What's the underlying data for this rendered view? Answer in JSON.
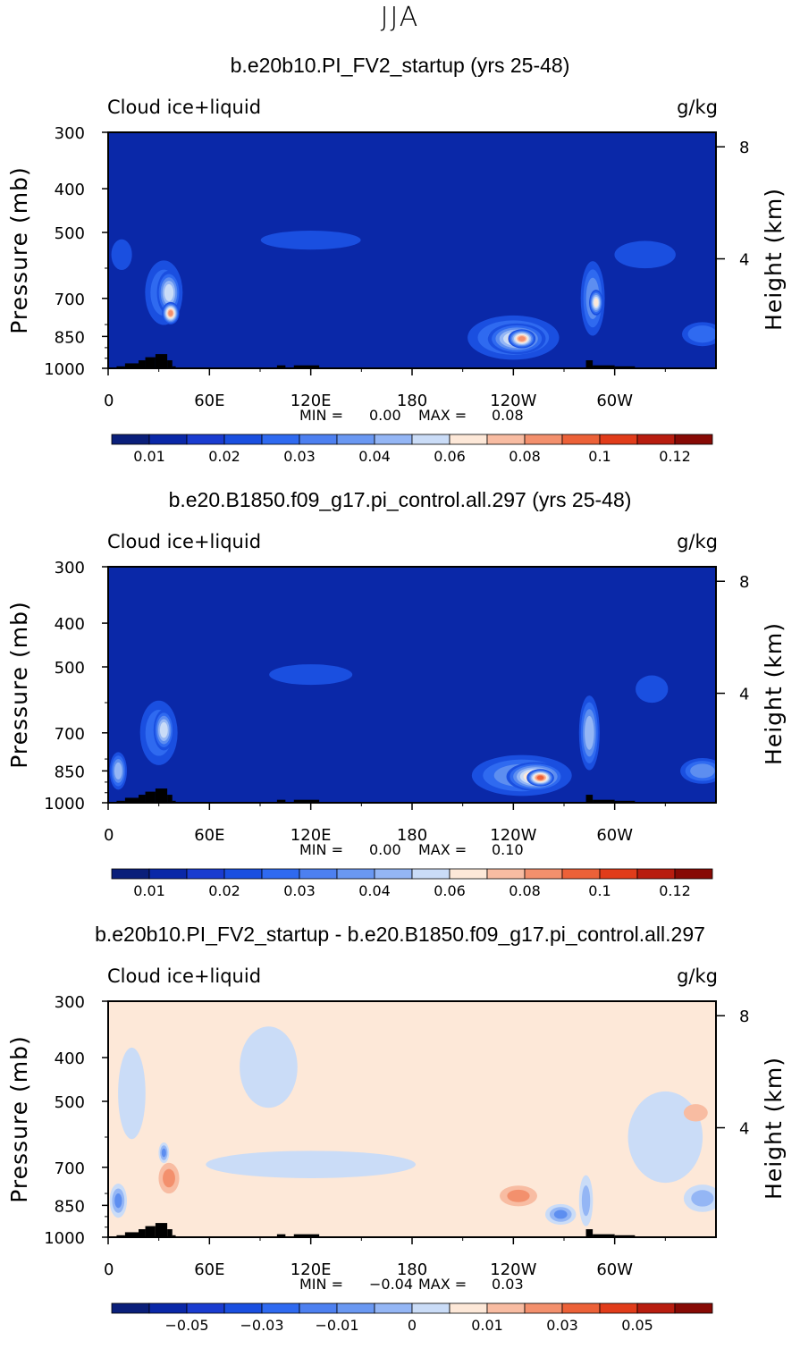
{
  "main_title": "JJA",
  "chart_data": [
    {
      "type": "heatmap",
      "title": "b.e20b10.PI_FV2_startup (yrs 25-48)",
      "left_label": "Cloud ice+liquid",
      "right_label": "g/kg",
      "ylabel": "Pressure (mb)",
      "ylabel_right": "Height (km)",
      "x_ticks": [
        "0",
        "60E",
        "120E",
        "180",
        "120W",
        "60W"
      ],
      "y_ticks": [
        "300",
        "400",
        "500",
        "700",
        "850",
        "1000"
      ],
      "y_right_ticks": [
        "8",
        "4"
      ],
      "min_label": "MIN =",
      "min_value": "0.00",
      "max_label": "MAX =",
      "max_value": "0.08",
      "colorbar_labels": [
        "0.01",
        "0.02",
        "0.03",
        "0.04",
        "0.06",
        "0.08",
        "0.1",
        "0.12"
      ],
      "background_color": "#0a28a8",
      "features": [
        {
          "lon": 8,
          "p": 560,
          "w": 8,
          "h": 70,
          "level": 2
        },
        {
          "lon": 33,
          "p": 680,
          "w": 18,
          "h": 170,
          "level": 3
        },
        {
          "lon": 36,
          "p": 680,
          "w": 10,
          "h": 110,
          "level": 6
        },
        {
          "lon": 37,
          "p": 755,
          "w": 6,
          "h": 45,
          "level": 9
        },
        {
          "lon": 120,
          "p": 520,
          "w": 55,
          "h": 35,
          "level": 2
        },
        {
          "lon": 240,
          "p": 855,
          "w": 50,
          "h": 110,
          "level": 4
        },
        {
          "lon": 242,
          "p": 860,
          "w": 30,
          "h": 70,
          "level": 7
        },
        {
          "lon": 245,
          "p": 860,
          "w": 12,
          "h": 35,
          "level": 9
        },
        {
          "lon": 287,
          "p": 700,
          "w": 10,
          "h": 200,
          "level": 4
        },
        {
          "lon": 289,
          "p": 715,
          "w": 4,
          "h": 55,
          "level": 7
        },
        {
          "lon": 318,
          "p": 560,
          "w": 32,
          "h": 60,
          "level": 2
        },
        {
          "lon": 352,
          "p": 840,
          "w": 20,
          "h": 50,
          "level": 3
        }
      ],
      "topo_color": "#000000"
    },
    {
      "type": "heatmap",
      "title": "b.e20.B1850.f09_g17.pi_control.all.297 (yrs 25-48)",
      "left_label": "Cloud ice+liquid",
      "right_label": "g/kg",
      "ylabel": "Pressure (mb)",
      "ylabel_right": "Height (km)",
      "x_ticks": [
        "0",
        "60E",
        "120E",
        "180",
        "120W",
        "60W"
      ],
      "y_ticks": [
        "300",
        "400",
        "500",
        "700",
        "850",
        "1000"
      ],
      "y_right_ticks": [
        "8",
        "4"
      ],
      "min_label": "MIN =",
      "min_value": "0.00",
      "max_label": "MAX =",
      "max_value": "0.10",
      "colorbar_labels": [
        "0.01",
        "0.02",
        "0.03",
        "0.04",
        "0.06",
        "0.08",
        "0.1",
        "0.12"
      ],
      "background_color": "#0a28a8",
      "features": [
        {
          "lon": 6,
          "p": 850,
          "w": 6,
          "h": 90,
          "level": 5
        },
        {
          "lon": 30,
          "p": 700,
          "w": 18,
          "h": 170,
          "level": 3
        },
        {
          "lon": 33,
          "p": 690,
          "w": 8,
          "h": 100,
          "level": 6
        },
        {
          "lon": 120,
          "p": 520,
          "w": 45,
          "h": 40,
          "level": 2
        },
        {
          "lon": 245,
          "p": 870,
          "w": 55,
          "h": 100,
          "level": 4
        },
        {
          "lon": 253,
          "p": 875,
          "w": 30,
          "h": 65,
          "level": 8
        },
        {
          "lon": 256,
          "p": 880,
          "w": 12,
          "h": 30,
          "level": 10
        },
        {
          "lon": 285,
          "p": 700,
          "w": 8,
          "h": 200,
          "level": 5
        },
        {
          "lon": 322,
          "p": 560,
          "w": 15,
          "h": 60,
          "level": 2
        },
        {
          "lon": 352,
          "p": 850,
          "w": 22,
          "h": 55,
          "level": 4
        }
      ],
      "topo_color": "#000000"
    },
    {
      "type": "heatmap",
      "title": "b.e20b10.PI_FV2_startup - b.e20.B1850.f09_g17.pi_control.all.297",
      "left_label": "Cloud ice+liquid",
      "right_label": "g/kg",
      "ylabel": "Pressure (mb)",
      "ylabel_right": "Height (km)",
      "x_ticks": [
        "0",
        "60E",
        "120E",
        "180",
        "120W",
        "60W"
      ],
      "y_ticks": [
        "300",
        "400",
        "500",
        "700",
        "850",
        "1000"
      ],
      "y_right_ticks": [
        "8",
        "4"
      ],
      "min_label": "MIN =",
      "min_value": "−0.04",
      "max_label": "MAX =",
      "max_value": "0.03",
      "colorbar_labels": [
        "−0.05",
        "−0.03",
        "−0.01",
        "0",
        "0.01",
        "0.03",
        "0.05"
      ],
      "background_color": "#fde8d8",
      "features": [
        {
          "lon": 14,
          "p": 480,
          "w": 12,
          "h": 250,
          "level": -1
        },
        {
          "lon": 95,
          "p": 420,
          "w": 30,
          "h": 220,
          "level": -1
        },
        {
          "lon": 120,
          "p": 690,
          "w": 120,
          "h": 60,
          "level": -1
        },
        {
          "lon": 330,
          "p": 600,
          "w": 40,
          "h": 250,
          "level": -1
        },
        {
          "lon": 6,
          "p": 830,
          "w": 6,
          "h": 80,
          "level": -3
        },
        {
          "lon": 36,
          "p": 740,
          "w": 8,
          "h": 70,
          "level": 2
        },
        {
          "lon": 33,
          "p": 650,
          "w": 2,
          "h": 40,
          "level": -3
        },
        {
          "lon": 243,
          "p": 810,
          "w": 18,
          "h": 40,
          "level": 2
        },
        {
          "lon": 268,
          "p": 890,
          "w": 14,
          "h": 40,
          "level": -3
        },
        {
          "lon": 283,
          "p": 830,
          "w": 4,
          "h": 130,
          "level": -2
        },
        {
          "lon": 352,
          "p": 820,
          "w": 18,
          "h": 60,
          "level": -2
        },
        {
          "lon": 348,
          "p": 530,
          "w": 10,
          "h": 30,
          "level": 1
        }
      ],
      "topo_color": "#000000"
    }
  ]
}
